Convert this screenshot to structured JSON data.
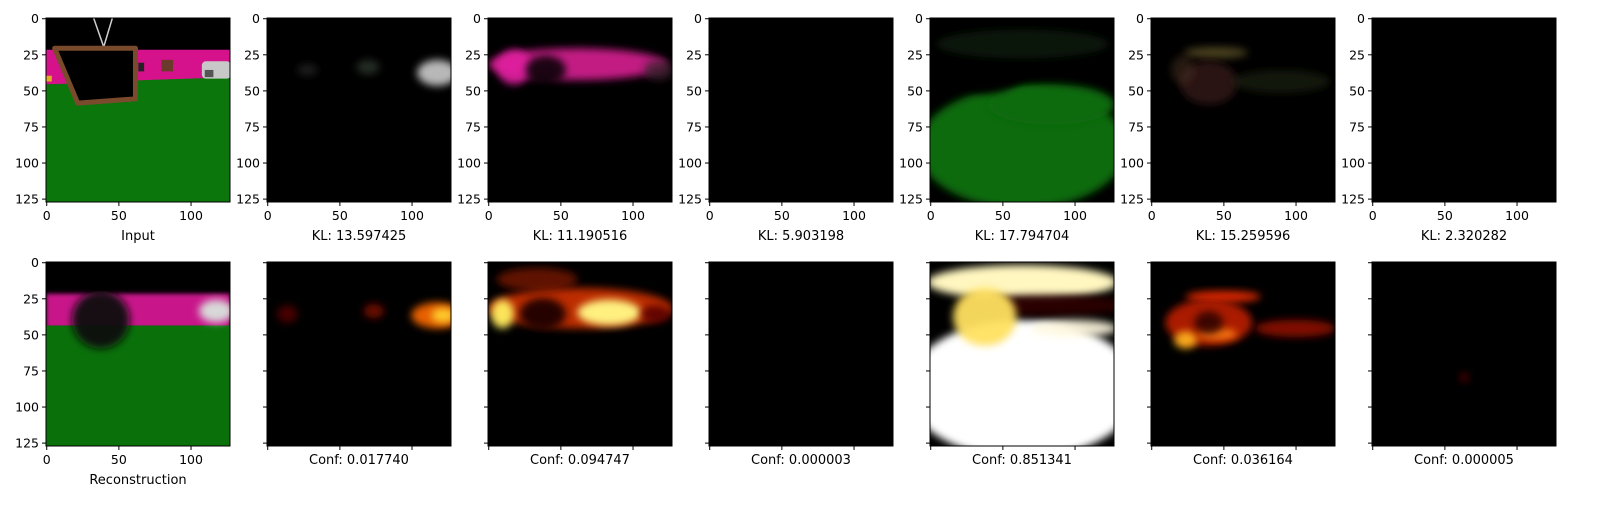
{
  "figure": {
    "top_row": [
      {
        "caption": "Input",
        "kind": "input"
      },
      {
        "caption": "KL: 13.597425",
        "kind": "mask",
        "blobs": [
          {
            "cx": 118,
            "cy": 38,
            "rx": 14,
            "ry": 9,
            "color": "#d8d8d8",
            "o": 0.85
          },
          {
            "cx": 70,
            "cy": 34,
            "rx": 8,
            "ry": 5,
            "color": "#3a4a3a",
            "o": 0.6
          },
          {
            "cx": 28,
            "cy": 36,
            "rx": 7,
            "ry": 4,
            "color": "#3a3a3a",
            "o": 0.5
          }
        ]
      },
      {
        "caption": "KL: 11.190516",
        "kind": "mask",
        "blobs": [
          {
            "cx": 62,
            "cy": 32,
            "rx": 62,
            "ry": 11,
            "color": "#cc1a8a",
            "o": 0.95
          },
          {
            "cx": 18,
            "cy": 34,
            "rx": 12,
            "ry": 12,
            "color": "#e020a0",
            "o": 0.9
          },
          {
            "cx": 118,
            "cy": 36,
            "rx": 10,
            "ry": 7,
            "color": "#402030",
            "o": 0.8
          },
          {
            "cx": 40,
            "cy": 36,
            "rx": 14,
            "ry": 10,
            "color": "#000000",
            "o": 0.85
          }
        ]
      },
      {
        "caption": "KL: 5.903198",
        "kind": "mask",
        "blobs": []
      },
      {
        "caption": "KL: 17.794704",
        "kind": "mask",
        "blobs": [
          {
            "cx": 64,
            "cy": 90,
            "rx": 72,
            "ry": 42,
            "color": "#0a6a0a",
            "o": 1
          },
          {
            "cx": 84,
            "cy": 60,
            "rx": 44,
            "ry": 14,
            "color": "#0a6a0a",
            "o": 1
          },
          {
            "cx": 40,
            "cy": 34,
            "rx": 26,
            "ry": 18,
            "color": "#000000",
            "o": 0.9
          },
          {
            "cx": 64,
            "cy": 18,
            "rx": 60,
            "ry": 10,
            "color": "#1a2a12",
            "o": 0.55
          }
        ]
      },
      {
        "caption": "KL: 15.259596",
        "kind": "mask",
        "blobs": [
          {
            "cx": 45,
            "cy": 24,
            "rx": 22,
            "ry": 4,
            "color": "#7a6a30",
            "o": 0.6
          },
          {
            "cx": 40,
            "cy": 45,
            "rx": 20,
            "ry": 15,
            "color": "#3a2018",
            "o": 0.7
          },
          {
            "cx": 90,
            "cy": 44,
            "rx": 34,
            "ry": 8,
            "color": "#1e2a18",
            "o": 0.6
          },
          {
            "cx": 22,
            "cy": 36,
            "rx": 8,
            "ry": 10,
            "color": "#4a3020",
            "o": 0.5
          }
        ]
      },
      {
        "caption": "KL: 2.320282",
        "kind": "mask",
        "blobs": []
      }
    ],
    "bottom_row": [
      {
        "caption": "Reconstruction",
        "kind": "recon"
      },
      {
        "caption": "Conf: 0.017740",
        "kind": "conf",
        "blobs": [
          {
            "cx": 118,
            "cy": 37,
            "rx": 18,
            "ry": 9,
            "color": "#ff6a00",
            "o": 0.9
          },
          {
            "cx": 122,
            "cy": 37,
            "rx": 8,
            "ry": 5,
            "color": "#ffd230",
            "o": 0.95
          },
          {
            "cx": 74,
            "cy": 34,
            "rx": 7,
            "ry": 5,
            "color": "#9a1000",
            "o": 0.7
          },
          {
            "cx": 14,
            "cy": 36,
            "rx": 7,
            "ry": 6,
            "color": "#7a0a00",
            "o": 0.6
          }
        ]
      },
      {
        "caption": "Conf: 0.094747",
        "kind": "conf",
        "blobs": [
          {
            "cx": 64,
            "cy": 32,
            "rx": 64,
            "ry": 14,
            "color": "#d03000",
            "o": 0.9
          },
          {
            "cx": 84,
            "cy": 35,
            "rx": 22,
            "ry": 9,
            "color": "#fff080",
            "o": 1
          },
          {
            "cx": 10,
            "cy": 36,
            "rx": 8,
            "ry": 10,
            "color": "#ffee60",
            "o": 0.95
          },
          {
            "cx": 116,
            "cy": 36,
            "rx": 10,
            "ry": 6,
            "color": "#5a0600",
            "o": 0.9
          },
          {
            "cx": 38,
            "cy": 36,
            "rx": 16,
            "ry": 11,
            "color": "#1a0000",
            "o": 0.95
          },
          {
            "cx": 34,
            "cy": 12,
            "rx": 28,
            "ry": 8,
            "color": "#a01a00",
            "o": 0.6
          }
        ]
      },
      {
        "caption": "Conf: 0.000003",
        "kind": "conf",
        "blobs": []
      },
      {
        "caption": "Conf: 0.851341",
        "kind": "conf",
        "blobs": [
          {
            "cx": 64,
            "cy": 88,
            "rx": 80,
            "ry": 48,
            "color": "#ffffff",
            "o": 1
          },
          {
            "cx": 64,
            "cy": 14,
            "rx": 66,
            "ry": 12,
            "color": "#fff6c0",
            "o": 1
          },
          {
            "cx": 80,
            "cy": 30,
            "rx": 60,
            "ry": 7,
            "color": "#2a0000",
            "o": 0.95
          },
          {
            "cx": 38,
            "cy": 38,
            "rx": 22,
            "ry": 20,
            "color": "#ffe060",
            "o": 0.95
          },
          {
            "cx": 100,
            "cy": 46,
            "rx": 30,
            "ry": 6,
            "color": "#fff8e0",
            "o": 0.9
          }
        ]
      },
      {
        "caption": "Conf: 0.036164",
        "kind": "conf",
        "blobs": [
          {
            "cx": 50,
            "cy": 24,
            "rx": 26,
            "ry": 4,
            "color": "#ff3000",
            "o": 0.85
          },
          {
            "cx": 40,
            "cy": 42,
            "rx": 30,
            "ry": 16,
            "color": "#c82000",
            "o": 0.85
          },
          {
            "cx": 24,
            "cy": 54,
            "rx": 8,
            "ry": 6,
            "color": "#ffb020",
            "o": 0.95
          },
          {
            "cx": 46,
            "cy": 50,
            "rx": 14,
            "ry": 4,
            "color": "#ff8010",
            "o": 0.9
          },
          {
            "cx": 100,
            "cy": 46,
            "rx": 28,
            "ry": 6,
            "color": "#a01000",
            "o": 0.8
          },
          {
            "cx": 40,
            "cy": 42,
            "rx": 10,
            "ry": 8,
            "color": "#200000",
            "o": 0.8
          }
        ]
      },
      {
        "caption": "Conf: 0.000005",
        "kind": "conf",
        "blobs": [
          {
            "cx": 64,
            "cy": 80,
            "rx": 3,
            "ry": 3,
            "color": "#6a0000",
            "o": 0.8
          }
        ]
      }
    ]
  },
  "chart_data": {
    "type": "heatmap",
    "rows": 2,
    "cols": 7,
    "xlim": [
      0,
      127
    ],
    "ylim": [
      127,
      0
    ],
    "xticks": [
      0,
      50,
      100
    ],
    "yticks": [
      0,
      25,
      50,
      75,
      100,
      125
    ],
    "kl_values": [
      13.597425,
      11.190516,
      5.903198,
      17.794704,
      15.259596,
      2.320282
    ],
    "conf_values": [
      0.01774,
      0.094747,
      3e-06,
      0.851341,
      0.036164,
      5e-06
    ],
    "colormap": "hot"
  }
}
